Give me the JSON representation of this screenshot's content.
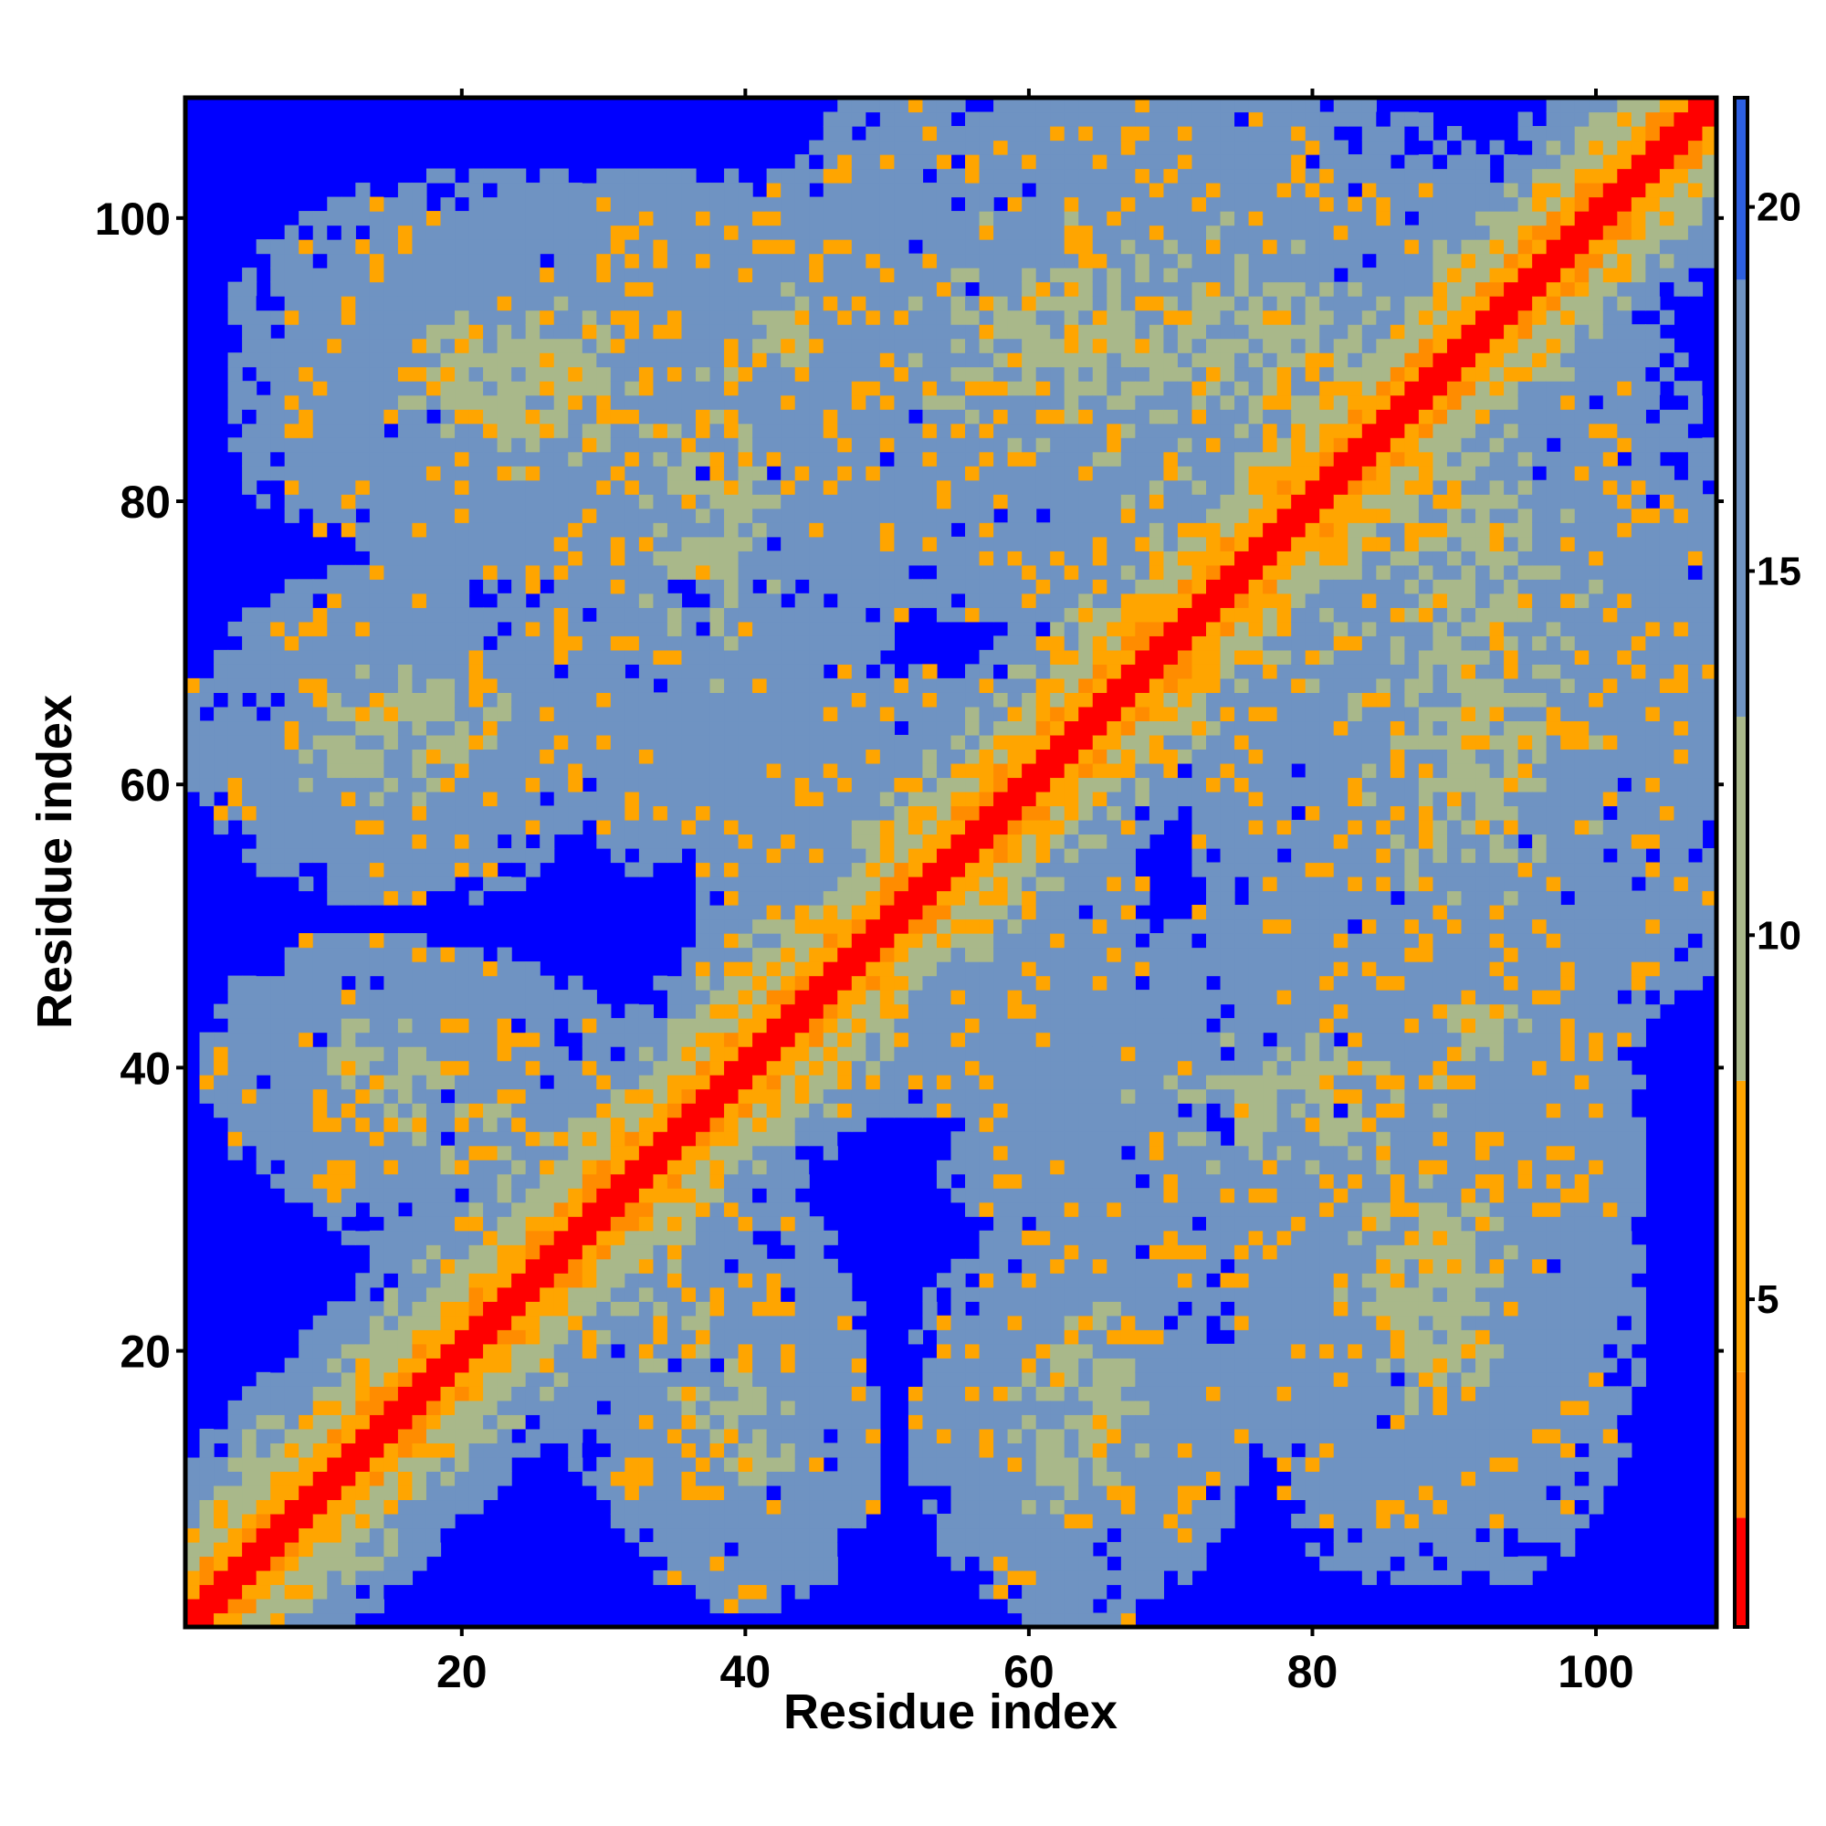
{
  "chart_data": {
    "type": "heatmap",
    "title": "",
    "xlabel": "Residue index",
    "ylabel": "Residue index",
    "n_residues": 108,
    "xlim": [
      0.5,
      108.5
    ],
    "ylim": [
      0.5,
      108.5
    ],
    "x_ticks": [
      20,
      40,
      60,
      80,
      100
    ],
    "y_ticks": [
      20,
      40,
      60,
      80,
      100
    ],
    "colorbar": {
      "ticks": [
        5,
        10,
        15,
        20
      ],
      "range": [
        0.5,
        21.5
      ],
      "colors": {
        "red": "#ff0000",
        "orange": "#ff8c00",
        "amber": "#ffa500",
        "sage": "#a9b88a",
        "steel": "#6f93c2",
        "blue": "#0000ff"
      }
    },
    "structure": {
      "diagonal_band": {
        "description": "contacts near the main diagonal",
        "segments": [
          [
            1,
            108
          ]
        ]
      },
      "contact_clusters": [
        {
          "i_range": [
            5,
            22
          ],
          "j_range": [
            33,
            47
          ],
          "strength": "medium"
        },
        {
          "i_range": [
            28,
            45
          ],
          "j_range": [
            10,
            30
          ],
          "strength": "medium"
        },
        {
          "i_range": [
            4,
            23
          ],
          "j_range": [
            55,
            72
          ],
          "strength": "medium"
        },
        {
          "i_range": [
            7,
            42
          ],
          "j_range": [
            78,
            100
          ],
          "strength": "medium"
        },
        {
          "i_range": [
            28,
            47
          ],
          "j_range": [
            57,
            100
          ],
          "strength": "medium"
        },
        {
          "i_range": [
            45,
            75
          ],
          "j_range": [
            75,
            108
          ],
          "strength": "low"
        },
        {
          "i_range": [
            55,
            73
          ],
          "j_range": [
            10,
            27
          ],
          "strength": "medium"
        },
        {
          "i_range": [
            78,
            97
          ],
          "j_range": [
            10,
            37
          ],
          "strength": "medium"
        },
        {
          "i_range": [
            85,
            100
          ],
          "j_range": [
            37,
            50
          ],
          "strength": "medium"
        },
        {
          "i_range": [
            72,
            108
          ],
          "j_range": [
            56,
            80
          ],
          "strength": "low"
        },
        {
          "i_range": [
            42,
            60
          ],
          "j_range": [
            40,
            65
          ],
          "strength": "medium"
        },
        {
          "i_range": [
            60,
            90
          ],
          "j_range": [
            78,
            108
          ],
          "strength": "low"
        }
      ]
    }
  }
}
